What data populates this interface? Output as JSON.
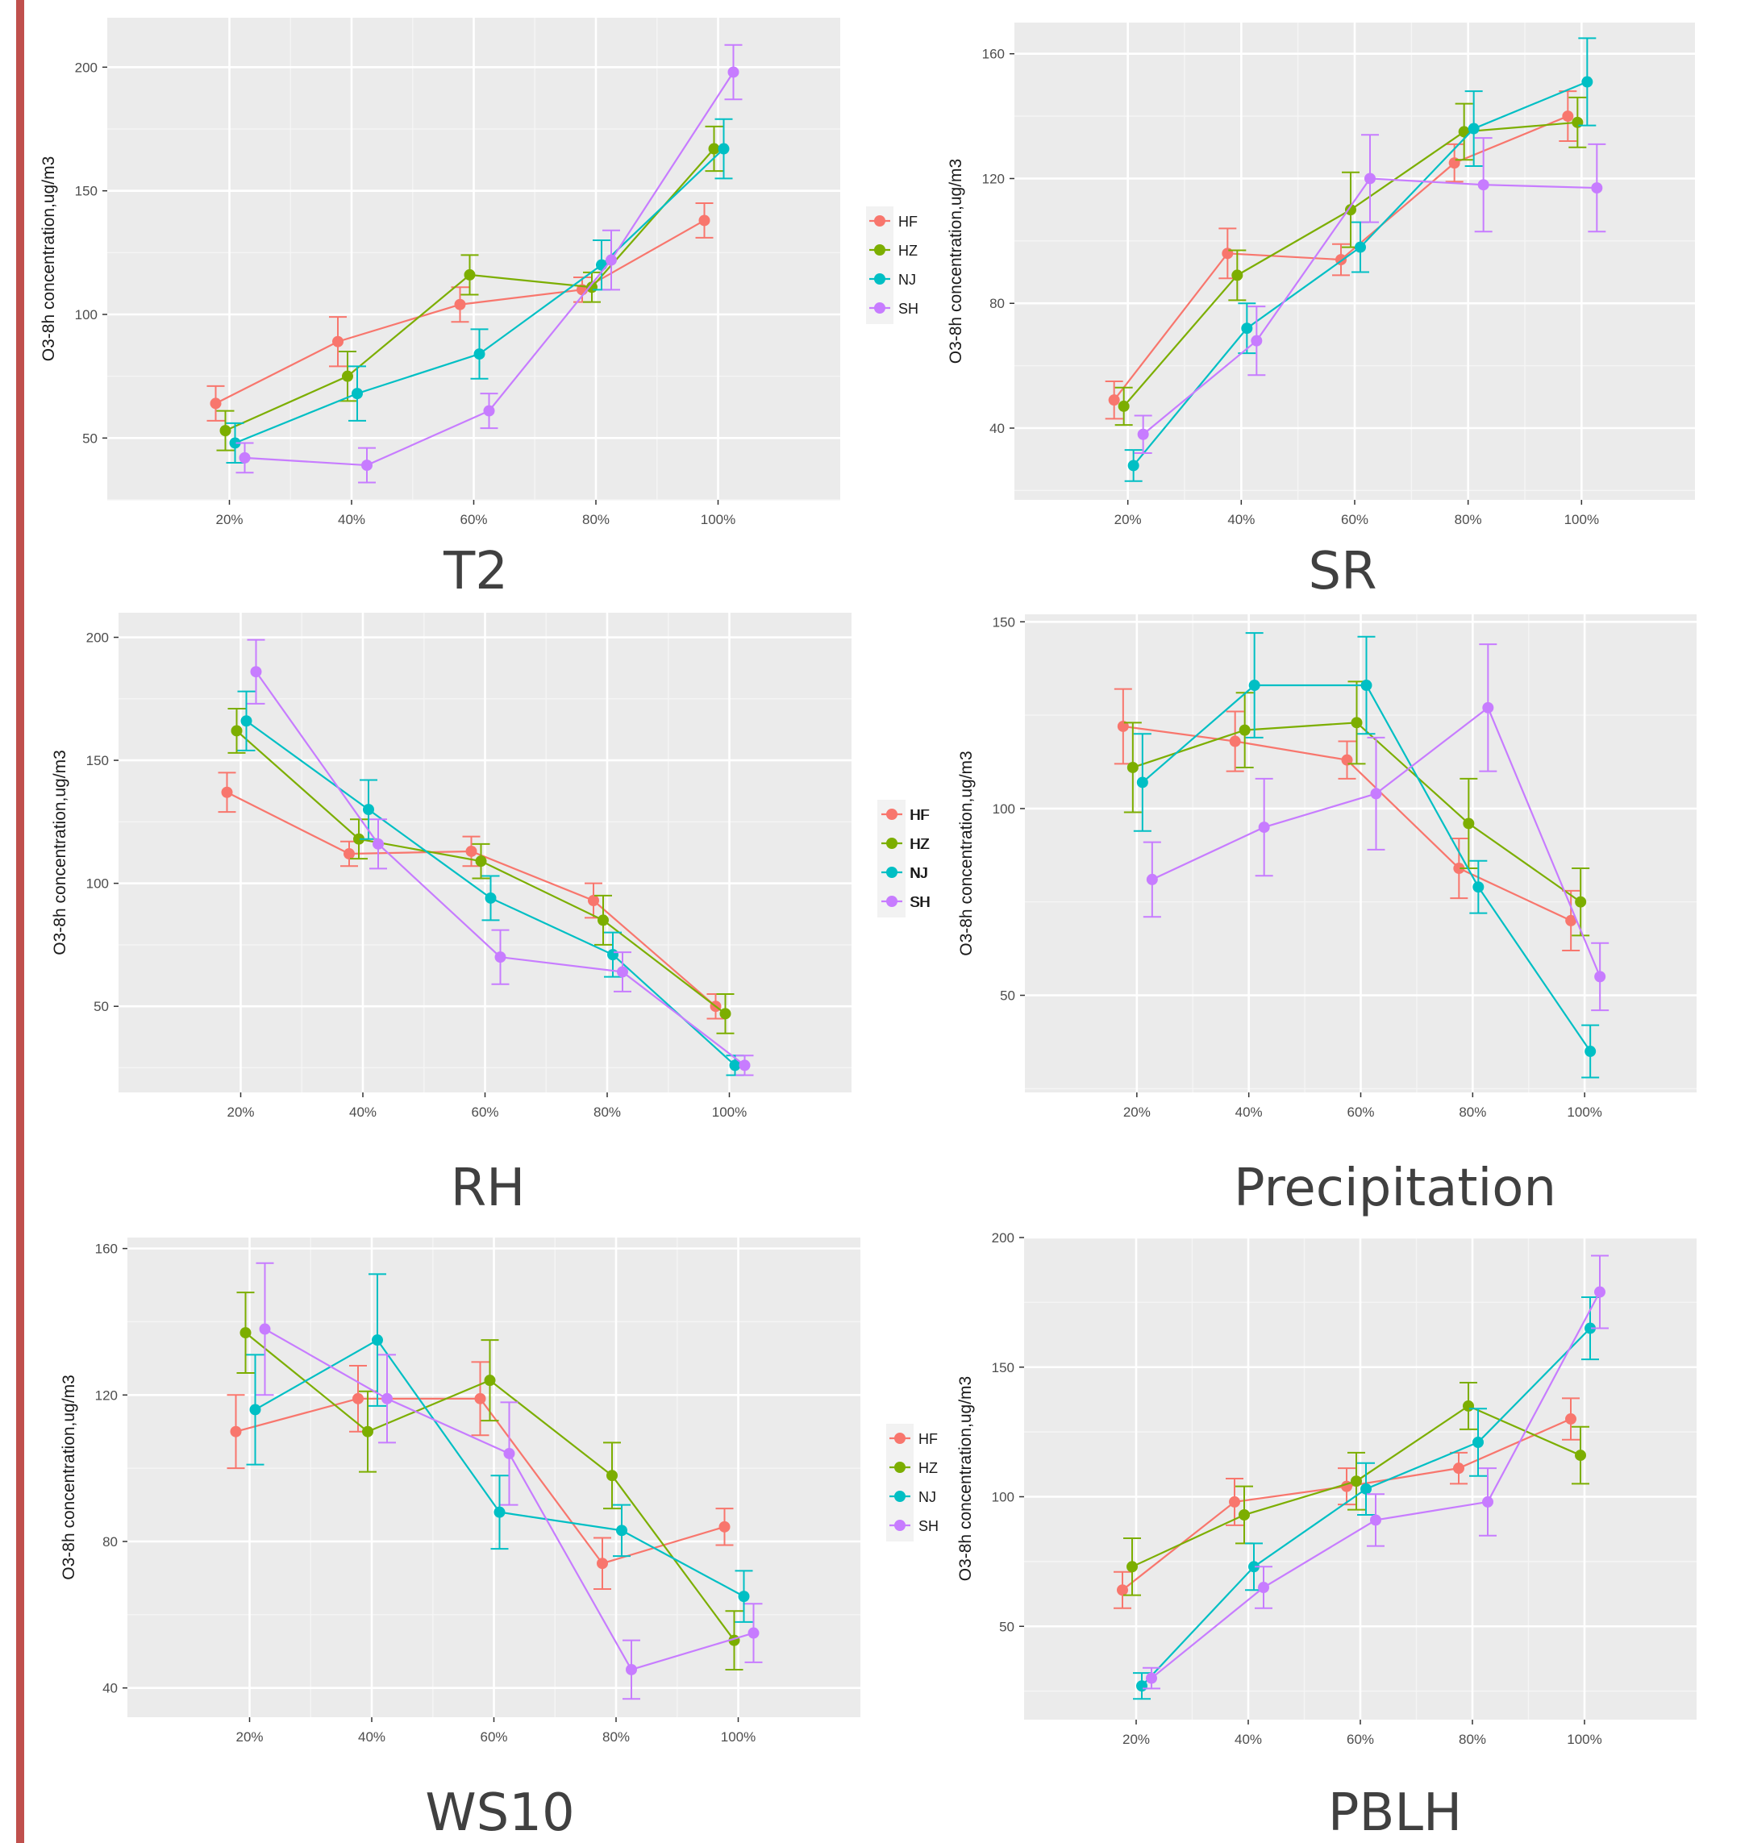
{
  "colors": {
    "HF": "#f8766d",
    "HZ": "#7cae00",
    "NJ": "#00bfc4",
    "SH": "#c77cff"
  },
  "chart_data": [
    {
      "type": "line",
      "caption": "T2",
      "ylabel": "O3-8h concentration,ug/m3",
      "categories": [
        "20%",
        "40%",
        "60%",
        "80%",
        "100%"
      ],
      "ylim": [
        25,
        220
      ],
      "yticks": [
        50,
        100,
        150,
        200
      ],
      "legend": [
        "HF",
        "HZ",
        "NJ",
        "SH"
      ],
      "series": [
        {
          "name": "HF",
          "values": [
            64,
            89,
            104,
            110,
            138
          ],
          "err": [
            7,
            10,
            7,
            5,
            7
          ]
        },
        {
          "name": "HZ",
          "values": [
            53,
            75,
            116,
            111,
            167
          ],
          "err": [
            8,
            10,
            8,
            6,
            9
          ]
        },
        {
          "name": "NJ",
          "values": [
            48,
            68,
            84,
            120,
            167
          ],
          "err": [
            8,
            11,
            10,
            10,
            12
          ]
        },
        {
          "name": "SH",
          "values": [
            42,
            39,
            61,
            122,
            198
          ],
          "err": [
            6,
            7,
            7,
            12,
            11
          ]
        }
      ]
    },
    {
      "type": "line",
      "caption": "SR",
      "ylabel": "O3-8h concentration,ug/m3",
      "categories": [
        "20%",
        "40%",
        "60%",
        "80%",
        "100%"
      ],
      "ylim": [
        17,
        170
      ],
      "yticks": [
        40,
        80,
        120,
        160
      ],
      "legend": [],
      "series": [
        {
          "name": "HF",
          "values": [
            49,
            96,
            94,
            125,
            140
          ],
          "err": [
            6,
            8,
            5,
            6,
            8
          ]
        },
        {
          "name": "HZ",
          "values": [
            47,
            89,
            110,
            135,
            138
          ],
          "err": [
            6,
            8,
            12,
            9,
            8
          ]
        },
        {
          "name": "NJ",
          "values": [
            28,
            72,
            98,
            136,
            151
          ],
          "err": [
            5,
            8,
            8,
            12,
            14
          ]
        },
        {
          "name": "SH",
          "values": [
            38,
            68,
            120,
            118,
            117
          ],
          "err": [
            6,
            11,
            14,
            15,
            14
          ]
        }
      ]
    },
    {
      "type": "line",
      "caption": "RH",
      "ylabel": "O3-8h concentration,ug/m3",
      "categories": [
        "20%",
        "40%",
        "60%",
        "80%",
        "100%"
      ],
      "ylim": [
        15,
        210
      ],
      "yticks": [
        50,
        100,
        150,
        200
      ],
      "legend": [
        "HF",
        "HZ",
        "NJ",
        "SH"
      ],
      "series": [
        {
          "name": "HF",
          "values": [
            137,
            112,
            113,
            93,
            50
          ],
          "err": [
            8,
            5,
            6,
            7,
            5
          ]
        },
        {
          "name": "HZ",
          "values": [
            162,
            118,
            109,
            85,
            47
          ],
          "err": [
            9,
            8,
            7,
            10,
            8
          ]
        },
        {
          "name": "NJ",
          "values": [
            166,
            130,
            94,
            71,
            26
          ],
          "err": [
            12,
            12,
            9,
            9,
            4
          ]
        },
        {
          "name": "SH",
          "values": [
            186,
            116,
            70,
            64,
            26
          ],
          "err": [
            13,
            10,
            11,
            8,
            4
          ]
        }
      ]
    },
    {
      "type": "line",
      "caption": "Precipitation",
      "ylabel": "O3-8h concentration,ug/m3",
      "categories": [
        "20%",
        "40%",
        "60%",
        "80%",
        "100%"
      ],
      "ylim": [
        24,
        152
      ],
      "yticks": [
        50,
        100,
        150
      ],
      "legend": [
        "HF",
        "HZ",
        "NJ",
        "SH"
      ],
      "series": [
        {
          "name": "HF",
          "values": [
            122,
            118,
            113,
            84,
            70
          ],
          "err": [
            10,
            8,
            5,
            8,
            8
          ]
        },
        {
          "name": "HZ",
          "values": [
            111,
            121,
            123,
            96,
            75
          ],
          "err": [
            12,
            10,
            11,
            12,
            9
          ]
        },
        {
          "name": "NJ",
          "values": [
            107,
            133,
            133,
            79,
            35
          ],
          "err": [
            13,
            14,
            13,
            7,
            7
          ]
        },
        {
          "name": "SH",
          "values": [
            81,
            95,
            104,
            127,
            55
          ],
          "err": [
            10,
            13,
            15,
            17,
            9
          ]
        }
      ]
    },
    {
      "type": "line",
      "caption": "WS10",
      "ylabel": "O3-8h concentration,ug/m3",
      "categories": [
        "20%",
        "40%",
        "60%",
        "80%",
        "100%"
      ],
      "ylim": [
        32,
        163
      ],
      "yticks": [
        40,
        80,
        120,
        160
      ],
      "legend": [
        "HF",
        "HZ",
        "NJ",
        "SH"
      ],
      "series": [
        {
          "name": "HF",
          "values": [
            110,
            119,
            119,
            74,
            84
          ],
          "err": [
            10,
            9,
            10,
            7,
            5
          ]
        },
        {
          "name": "HZ",
          "values": [
            137,
            110,
            124,
            98,
            53
          ],
          "err": [
            11,
            11,
            11,
            9,
            8
          ]
        },
        {
          "name": "NJ",
          "values": [
            116,
            135,
            88,
            83,
            65
          ],
          "err": [
            15,
            18,
            10,
            7,
            7
          ]
        },
        {
          "name": "SH",
          "values": [
            138,
            119,
            104,
            45,
            55
          ],
          "err": [
            18,
            12,
            14,
            8,
            8
          ]
        }
      ]
    },
    {
      "type": "line",
      "caption": "PBLH",
      "ylabel": "O3-8h concentration,ug/m3",
      "categories": [
        "20%",
        "40%",
        "60%",
        "80%",
        "100%"
      ],
      "ylim": [
        14,
        200
      ],
      "yticks": [
        50,
        100,
        150,
        200
      ],
      "legend": [],
      "series": [
        {
          "name": "HF",
          "values": [
            64,
            98,
            104,
            111,
            130
          ],
          "err": [
            7,
            9,
            7,
            6,
            8
          ]
        },
        {
          "name": "HZ",
          "values": [
            73,
            93,
            106,
            135,
            116
          ],
          "err": [
            11,
            11,
            11,
            9,
            11
          ]
        },
        {
          "name": "NJ",
          "values": [
            27,
            73,
            103,
            121,
            165
          ],
          "err": [
            5,
            9,
            10,
            13,
            12
          ]
        },
        {
          "name": "SH",
          "values": [
            30,
            65,
            91,
            98,
            179
          ],
          "err": [
            4,
            8,
            10,
            13,
            14
          ]
        }
      ]
    }
  ]
}
